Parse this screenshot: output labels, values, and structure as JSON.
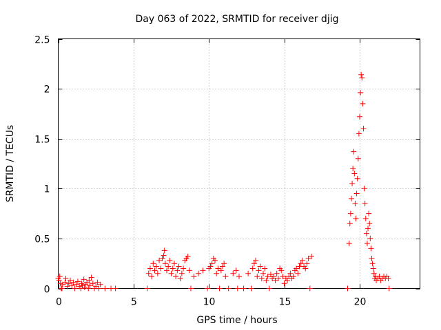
{
  "chart_data": {
    "type": "scatter",
    "title": "Day 063 of 2022, SRMTID for receiver djig",
    "xlabel": "GPS time / hours",
    "ylabel": "SRMTID / TECUs",
    "xlim": [
      0,
      24
    ],
    "ylim": [
      0,
      2.5
    ],
    "x_ticks": [
      0,
      5,
      10,
      15,
      20
    ],
    "x_tick_labels": [
      "0",
      "5",
      "10",
      "15",
      "20"
    ],
    "y_ticks": [
      0,
      0.5,
      1,
      1.5,
      2,
      2.5
    ],
    "y_tick_labels": [
      "0",
      "0.5",
      "1",
      "1.5",
      "2",
      "2.5"
    ],
    "grid": true,
    "marker": "+",
    "color": "#ff0000",
    "series": [
      {
        "name": "SRMTID",
        "x": [
          0.0,
          0.05,
          0.1,
          0.15,
          0.2,
          0.25,
          0.3,
          0.45,
          0.5,
          0.6,
          0.7,
          0.8,
          0.9,
          1.0,
          1.1,
          1.2,
          1.3,
          1.4,
          1.5,
          1.55,
          1.6,
          1.7,
          1.75,
          1.8,
          1.9,
          2.0,
          2.05,
          2.1,
          2.2,
          2.3,
          2.4,
          2.5,
          2.6,
          2.7,
          2.8,
          3.1,
          3.5,
          3.8,
          5.9,
          6.0,
          6.1,
          6.2,
          6.3,
          6.4,
          6.5,
          6.6,
          6.7,
          6.8,
          6.9,
          7.0,
          7.05,
          7.1,
          7.2,
          7.3,
          7.4,
          7.5,
          7.6,
          7.7,
          7.8,
          7.9,
          8.0,
          8.1,
          8.2,
          8.3,
          8.4,
          8.5,
          8.6,
          8.7,
          8.8,
          9.0,
          9.3,
          9.6,
          9.9,
          10.0,
          10.1,
          10.2,
          10.3,
          10.4,
          10.5,
          10.6,
          10.7,
          10.8,
          10.9,
          11.0,
          11.1,
          11.3,
          11.6,
          11.8,
          11.9,
          12.0,
          12.3,
          12.6,
          12.8,
          12.9,
          13.0,
          13.1,
          13.2,
          13.3,
          13.4,
          13.5,
          13.6,
          13.7,
          13.8,
          13.9,
          14.0,
          14.1,
          14.2,
          14.3,
          14.4,
          14.5,
          14.6,
          14.7,
          14.8,
          14.9,
          15.0,
          15.1,
          15.2,
          15.3,
          15.4,
          15.5,
          15.6,
          15.7,
          15.8,
          15.9,
          16.0,
          16.1,
          16.2,
          16.3,
          16.4,
          16.5,
          16.6,
          16.7,
          16.8,
          19.2,
          19.3,
          19.35,
          19.4,
          19.45,
          19.5,
          19.55,
          19.6,
          19.65,
          19.7,
          19.75,
          19.8,
          19.85,
          19.9,
          19.95,
          20.0,
          20.05,
          20.1,
          20.15,
          20.2,
          20.25,
          20.3,
          20.35,
          20.4,
          20.45,
          20.5,
          20.55,
          20.6,
          20.65,
          20.7,
          20.75,
          20.8,
          20.85,
          20.9,
          20.95,
          21.0,
          21.05,
          21.1,
          21.2,
          21.3,
          21.4,
          21.5,
          21.6,
          21.7,
          21.8,
          21.9,
          21.95
        ],
        "y": [
          0.1,
          0.08,
          0.12,
          0.05,
          0.0,
          0.0,
          0.04,
          0.06,
          0.1,
          0.02,
          0.05,
          0.08,
          0.03,
          0.06,
          0.0,
          0.04,
          0.07,
          0.02,
          0.0,
          0.05,
          0.03,
          0.09,
          0.01,
          0.04,
          0.06,
          0.0,
          0.08,
          0.03,
          0.11,
          0.05,
          0.0,
          0.02,
          0.06,
          0.0,
          0.04,
          0.0,
          0.0,
          0.0,
          0.0,
          0.15,
          0.2,
          0.12,
          0.25,
          0.18,
          0.22,
          0.15,
          0.28,
          0.2,
          0.3,
          0.33,
          0.38,
          0.25,
          0.18,
          0.22,
          0.28,
          0.15,
          0.2,
          0.25,
          0.12,
          0.18,
          0.22,
          0.1,
          0.15,
          0.2,
          0.28,
          0.3,
          0.32,
          0.18,
          0.0,
          0.12,
          0.15,
          0.18,
          0.0,
          0.2,
          0.22,
          0.25,
          0.3,
          0.28,
          0.15,
          0.2,
          0.0,
          0.18,
          0.22,
          0.25,
          0.12,
          0.0,
          0.15,
          0.18,
          0.0,
          0.12,
          0.0,
          0.15,
          0.0,
          0.2,
          0.25,
          0.28,
          0.12,
          0.18,
          0.22,
          0.1,
          0.15,
          0.2,
          0.08,
          0.12,
          0.0,
          0.14,
          0.1,
          0.12,
          0.08,
          0.15,
          0.1,
          0.2,
          0.18,
          0.12,
          0.05,
          0.1,
          0.08,
          0.12,
          0.15,
          0.1,
          0.12,
          0.18,
          0.2,
          0.15,
          0.22,
          0.25,
          0.28,
          0.22,
          0.2,
          0.25,
          0.3,
          0.0,
          0.32,
          0.0,
          0.45,
          0.65,
          0.75,
          0.9,
          1.05,
          1.2,
          1.37,
          1.15,
          0.85,
          0.7,
          0.95,
          1.1,
          1.3,
          1.55,
          1.72,
          1.96,
          2.14,
          2.11,
          1.85,
          1.6,
          1.0,
          0.85,
          0.7,
          0.55,
          0.45,
          0.6,
          0.75,
          0.65,
          0.5,
          0.4,
          0.3,
          0.25,
          0.2,
          0.15,
          0.1,
          0.12,
          0.08,
          0.1,
          0.12,
          0.08,
          0.1,
          0.12,
          0.1,
          0.12,
          0.1,
          0.0
        ]
      }
    ]
  }
}
